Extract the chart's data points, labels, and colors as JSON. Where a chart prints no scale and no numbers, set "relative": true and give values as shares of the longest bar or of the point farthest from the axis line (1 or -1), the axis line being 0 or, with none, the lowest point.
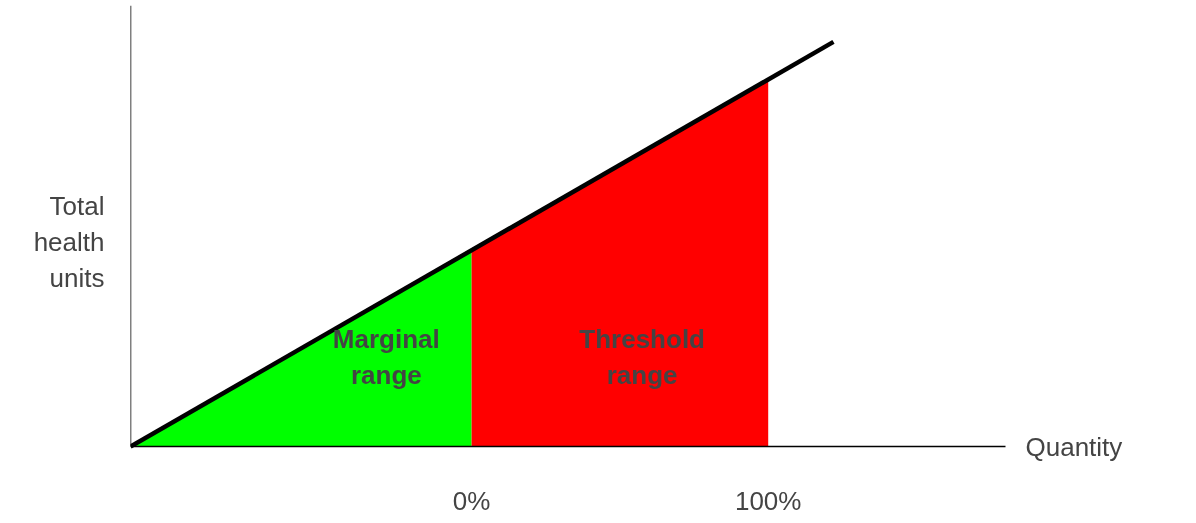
{
  "chart_data": {
    "type": "area",
    "relative": true,
    "xlabel": "Quantity",
    "ylabel": "Total health units",
    "xlim": [
      -115,
      180
    ],
    "xticks": [
      {
        "value": 0,
        "label": "0%"
      },
      {
        "value": 100,
        "label": "100%"
      }
    ],
    "series": [
      {
        "type": "area",
        "color": "#00ff00",
        "x": [
          -115,
          0
        ],
        "values": [
          0,
          0.49
        ]
      },
      {
        "type": "area",
        "color": "#ff0000",
        "x": [
          0,
          100
        ],
        "values": [
          0.49,
          0.91
        ]
      },
      {
        "type": "line",
        "color": "#000000",
        "x": [
          -115,
          122
        ],
        "values": [
          0,
          1
        ]
      }
    ],
    "annotations": [
      "Marginal range",
      "Threshold range"
    ],
    "grid": false
  }
}
